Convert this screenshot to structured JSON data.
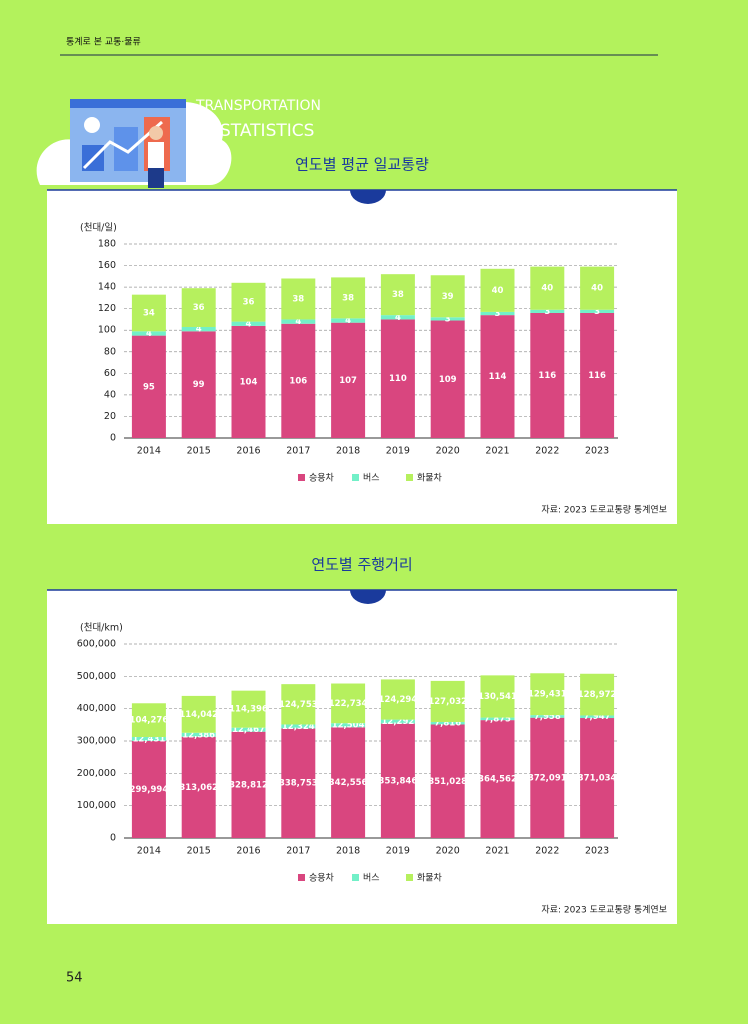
{
  "header": "통계로 본 교통·물류",
  "deco": {
    "line1": "TRANSPORTATION",
    "line2": "STATISTICS"
  },
  "page_number": "54",
  "chart_data": [
    {
      "type": "bar",
      "stacked": true,
      "title": "연도별 평균 일교통량",
      "y_label": "(천대/일)",
      "categories": [
        "2014",
        "2015",
        "2016",
        "2017",
        "2018",
        "2019",
        "2020",
        "2021",
        "2022",
        "2023"
      ],
      "series": [
        {
          "name": "승용차",
          "color": "#d9467f",
          "values": [
            95,
            99,
            104,
            106,
            107,
            110,
            109,
            114,
            116,
            116
          ]
        },
        {
          "name": "버스",
          "color": "#72f0c8",
          "values": [
            4,
            4,
            4,
            4,
            4,
            4,
            3,
            3,
            3,
            3
          ]
        },
        {
          "name": "화물차",
          "color": "#b6f05e",
          "values": [
            34,
            36,
            36,
            38,
            38,
            38,
            39,
            40,
            40,
            40
          ]
        }
      ],
      "ylim": [
        0,
        180
      ],
      "yticks": [
        0,
        20,
        40,
        60,
        80,
        100,
        120,
        140,
        160,
        180
      ],
      "grid": true,
      "legend": "bottom",
      "source": "자료: 2023 도로교통량 통계연보"
    },
    {
      "type": "bar",
      "stacked": true,
      "title": "연도별 주행거리",
      "y_label": "(천대/km)",
      "categories": [
        "2014",
        "2015",
        "2016",
        "2017",
        "2018",
        "2019",
        "2020",
        "2021",
        "2022",
        "2023"
      ],
      "series": [
        {
          "name": "승용차",
          "color": "#d9467f",
          "values": [
            299994,
            313062,
            328812,
            338753,
            342556,
            353846,
            351028,
            364562,
            372091,
            371034
          ],
          "value_labels": [
            "299,994",
            "313,062",
            "328,812",
            "338,753",
            "342,556",
            "353,846",
            "351,028",
            "364,562",
            "372,091",
            "371,034"
          ]
        },
        {
          "name": "버스",
          "color": "#72f0c8",
          "values": [
            12431,
            12386,
            12467,
            12324,
            12504,
            12292,
            7816,
            7875,
            7958,
            7947
          ],
          "value_labels": [
            "12,431",
            "12,386",
            "12,467",
            "12,324",
            "12,504",
            "12,292",
            "7,816",
            "7,875",
            "7,958",
            "7,947"
          ]
        },
        {
          "name": "화물차",
          "color": "#b6f05e",
          "values": [
            104276,
            114042,
            114396,
            124753,
            122734,
            124294,
            127032,
            130541,
            129431,
            128972
          ],
          "value_labels": [
            "104,276",
            "114,042",
            "114,396",
            "124,753",
            "122,734",
            "124,294",
            "127,032",
            "130,541",
            "129,431",
            "128,972"
          ]
        }
      ],
      "ylim": [
        0,
        600000
      ],
      "yticks": [
        0,
        {
          "value": 100000,
          "label": "100,000"
        },
        {
          "value": 200000,
          "label": "200,000"
        },
        {
          "value": 300000,
          "label": "300,000"
        },
        {
          "value": 400000,
          "label": "400,000"
        },
        {
          "value": 500000,
          "label": "500,000"
        },
        {
          "value": 600000,
          "label": "600,000"
        }
      ],
      "grid": true,
      "legend": "bottom",
      "source": "자료: 2023 도로교통량 통계연보"
    }
  ]
}
